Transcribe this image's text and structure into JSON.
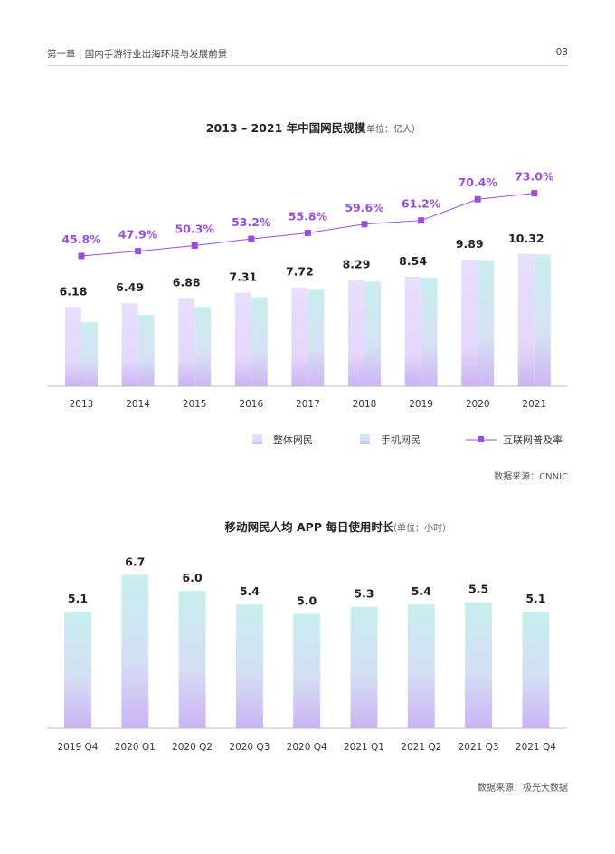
{
  "header": {
    "chapter": "第一章 | 国内手游行业出海环境与发展前景",
    "page_number": "03"
  },
  "chart_data": [
    {
      "type": "bar",
      "title": "2013 – 2021 年中国网民规模",
      "unit_note": "（单位：亿人）",
      "categories": [
        "2013",
        "2014",
        "2015",
        "2016",
        "2017",
        "2018",
        "2019",
        "2020",
        "2021"
      ],
      "series": [
        {
          "name": "整体网民",
          "values": [
            6.18,
            6.49,
            6.88,
            7.31,
            7.72,
            8.29,
            8.54,
            9.89,
            10.32
          ],
          "value_labels": [
            "6.18",
            "6.49",
            "6.88",
            "7.31",
            "7.72",
            "8.29",
            "8.54",
            "9.89",
            "10.32"
          ],
          "color": "#e6dafc"
        },
        {
          "name": "手机网民",
          "values": [
            5.0,
            5.57,
            6.2,
            6.95,
            7.53,
            8.17,
            8.47,
            9.86,
            10.29
          ],
          "color": "#c6ecec"
        },
        {
          "name": "互联网普及率",
          "type": "line",
          "values": [
            45.8,
            47.9,
            50.3,
            53.2,
            55.8,
            59.6,
            61.2,
            70.4,
            73.0
          ],
          "value_labels": [
            "45.8%",
            "47.9%",
            "50.3%",
            "53.2%",
            "55.8%",
            "59.6%",
            "61.2%",
            "70.4%",
            "73.0%"
          ],
          "color": "#9b4de0"
        }
      ],
      "ylim": [
        0,
        12
      ],
      "line_ylim": [
        0,
        100
      ],
      "grid": false,
      "legend": "bottom",
      "source": "数据来源：CNNIC"
    },
    {
      "type": "bar",
      "title": "移动网民人均 APP 每日使用时长",
      "unit_note": "（单位：小时）",
      "categories": [
        "2019 Q4",
        "2020 Q1",
        "2020 Q2",
        "2020 Q3",
        "2020 Q4",
        "2021 Q1",
        "2021 Q2",
        "2021 Q3",
        "2021 Q4"
      ],
      "series": [
        {
          "values": [
            5.1,
            6.7,
            6.0,
            5.4,
            5.0,
            5.3,
            5.4,
            5.5,
            5.1
          ],
          "value_labels": [
            "5.1",
            "6.7",
            "6.0",
            "5.4",
            "5.0",
            "5.3",
            "5.4",
            "5.5",
            "5.1"
          ],
          "color": "#c6ecec"
        }
      ],
      "ylim": [
        0,
        7.5
      ],
      "grid": false,
      "source": "数据来源：极光大数据"
    }
  ]
}
